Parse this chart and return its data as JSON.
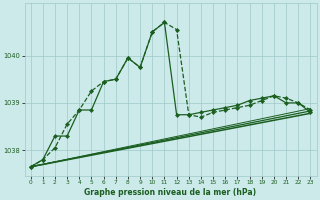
{
  "title": "Graphe pression niveau de la mer (hPa)",
  "background_color": "#cdeaea",
  "grid_color": "#9fc8c8",
  "line_color": "#1a5e20",
  "xlim": [
    -0.5,
    23.5
  ],
  "ylim": [
    1037.45,
    1041.1
  ],
  "yticks": [
    1038,
    1039,
    1040
  ],
  "ytick_labels": [
    "1038",
    "1039",
    "1040"
  ],
  "xticks": [
    0,
    1,
    2,
    3,
    4,
    5,
    6,
    7,
    8,
    9,
    10,
    11,
    12,
    13,
    14,
    15,
    16,
    17,
    18,
    19,
    20,
    21,
    22,
    23
  ],
  "series_dashed": {
    "x": [
      0,
      1,
      2,
      3,
      4,
      5,
      6,
      7,
      8,
      9,
      10,
      11,
      12,
      13,
      14,
      15,
      16,
      17,
      18,
      19,
      20,
      21,
      22,
      23
    ],
    "y": [
      1037.65,
      1037.8,
      1038.05,
      1038.55,
      1038.85,
      1039.25,
      1039.45,
      1039.5,
      1039.95,
      1039.75,
      1040.5,
      1040.7,
      1040.55,
      1038.75,
      1038.7,
      1038.8,
      1038.85,
      1038.9,
      1038.95,
      1039.05,
      1039.15,
      1039.1,
      1039.0,
      1038.85
    ],
    "linestyle": "--",
    "linewidth": 0.9,
    "markersize": 2.2
  },
  "series_solid": {
    "x": [
      0,
      1,
      2,
      3,
      4,
      5,
      6,
      7,
      8,
      9,
      10,
      11,
      12,
      13,
      14,
      15,
      16,
      17,
      18,
      19,
      20,
      21,
      22,
      23
    ],
    "y": [
      1037.65,
      1037.8,
      1038.3,
      1038.3,
      1038.85,
      1038.85,
      1039.45,
      1039.5,
      1039.95,
      1039.75,
      1040.5,
      1040.7,
      1038.75,
      1038.75,
      1038.8,
      1038.85,
      1038.9,
      1038.95,
      1039.05,
      1039.1,
      1039.15,
      1039.0,
      1039.0,
      1038.8
    ],
    "linestyle": "-",
    "linewidth": 0.9,
    "markersize": 2.2
  },
  "trend1": {
    "x": [
      0,
      23
    ],
    "y": [
      1037.65,
      1038.78
    ],
    "linewidth": 1.1
  },
  "trend2": {
    "x": [
      0,
      23
    ],
    "y": [
      1037.65,
      1038.83
    ],
    "linewidth": 0.9
  },
  "trend3": {
    "x": [
      0,
      23
    ],
    "y": [
      1037.65,
      1038.88
    ],
    "linewidth": 0.7
  }
}
